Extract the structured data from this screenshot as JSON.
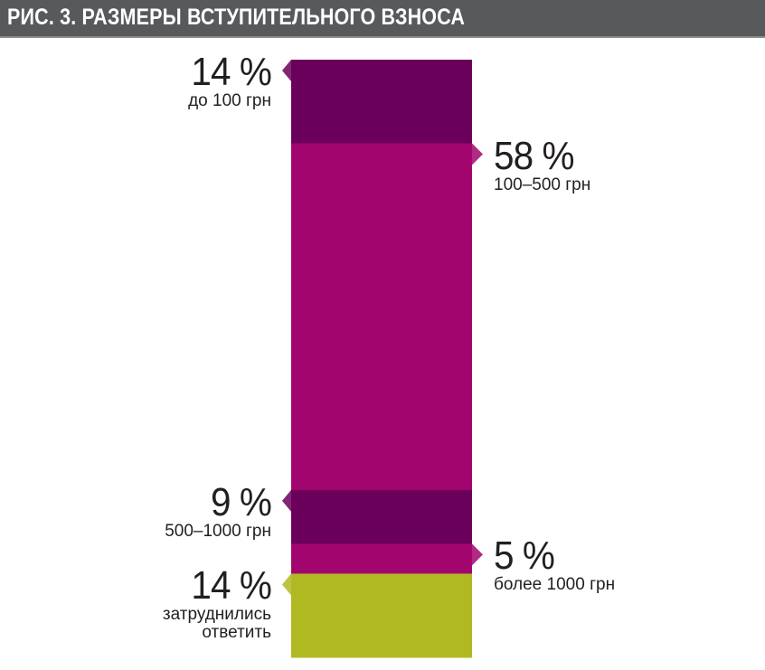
{
  "title": "РИС. 3. РАЗМЕРЫ ВСТУПИТЕЛЬНОГО ВЗНОСА",
  "chart_data": {
    "type": "bar",
    "subtype": "stacked-100-percent-single-column",
    "title": "РИС. 3. РАЗМЕРЫ ВСТУПИТЕЛЬНОГО ВЗНОСА",
    "unit": "%",
    "segments": [
      {
        "category": "до 100 грн",
        "value": 14,
        "value_label": "14 %",
        "color": "#6b005b",
        "label_side": "left"
      },
      {
        "category": "100–500 грн",
        "value": 58,
        "value_label": "58 %",
        "color": "#a3056f",
        "label_side": "right"
      },
      {
        "category": "500–1000 грн",
        "value": 9,
        "value_label": "9 %",
        "color": "#6b005b",
        "label_side": "left"
      },
      {
        "category": "более 1000 грн",
        "value": 5,
        "value_label": "5 %",
        "color": "#a3056f",
        "label_side": "right"
      },
      {
        "category": "затруднились ответить",
        "value": 14,
        "value_label": "14 %",
        "color": "#b0b922",
        "label_side": "left"
      }
    ],
    "ylim": [
      0,
      100
    ],
    "grid": false,
    "legend": "none"
  }
}
